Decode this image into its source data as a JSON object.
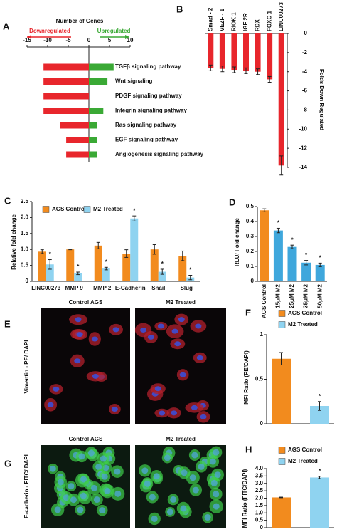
{
  "chart_data": [
    {
      "type": "bar",
      "panel": "A",
      "orientation": "horizontal",
      "xlabel": "Number of Genes",
      "categories": [
        "TGFβ signaling pathway",
        "Wnt  signaling",
        "PDGF signaling pathway",
        "Integrin signaling pathway",
        "Ras  signaling pathway",
        "EGF signaling pathway",
        "Angiogenesis signaling pathway"
      ],
      "series": [
        {
          "name": "Downregulated",
          "color": "#e8262c",
          "values": [
            -11,
            -11,
            -11,
            -11,
            -7,
            -5.5,
            -5.5
          ]
        },
        {
          "name": "Upregulated",
          "color": "#3aa935",
          "values": [
            6,
            4.5,
            0,
            3.5,
            2,
            2,
            2
          ]
        }
      ],
      "xlim": [
        -15,
        10
      ],
      "xticks": [
        -15,
        -10,
        -5,
        0,
        5,
        10
      ]
    },
    {
      "type": "bar",
      "panel": "B",
      "ylabel": "Folds Down Regulated",
      "categories": [
        "Smad - 2",
        "VEZF - 1",
        "RIOK 1",
        "IGF 2R",
        "RDX",
        "FOXC 1",
        "LINC00273"
      ],
      "values": [
        -3.6,
        -3.7,
        -3.8,
        -3.9,
        -4.0,
        -4.8,
        -13.8
      ],
      "errors": [
        0.3,
        0.3,
        0.3,
        0.3,
        0.3,
        0.3,
        1.0
      ],
      "color": "#e8262c",
      "ylim": [
        -14,
        0
      ],
      "yticks": [
        0,
        -2,
        -4,
        -6,
        -8,
        -10,
        -12,
        -14
      ]
    },
    {
      "type": "bar",
      "panel": "C",
      "ylabel": "Relative fold change",
      "categories": [
        "LINC00273",
        "MMP 9",
        "MMP 2",
        "E-Cadherin",
        "Snail",
        "Slug"
      ],
      "series": [
        {
          "name": "AGS Control",
          "color": "#f28b1e",
          "values": [
            0.93,
            1.0,
            1.12,
            0.87,
            1.0,
            0.8
          ],
          "errors": [
            0.06,
            0.01,
            0.1,
            0.12,
            0.15,
            0.15
          ]
        },
        {
          "name": "M2 Treated",
          "color": "#8fd3f0",
          "values": [
            0.53,
            0.25,
            0.4,
            1.97,
            0.3,
            0.12
          ],
          "errors": [
            0.15,
            0.04,
            0.04,
            0.08,
            0.08,
            0.07
          ],
          "annotations": [
            "*",
            "*",
            "*",
            "*",
            "*",
            "*"
          ]
        }
      ],
      "ylim": [
        0,
        2.5
      ],
      "yticks": [
        0,
        0.5,
        {
          "value": 1,
          "label": "1.0"
        },
        1.5,
        {
          "value": 2,
          "label": "2.0"
        },
        2.5
      ]
    },
    {
      "type": "bar",
      "panel": "D",
      "ylabel": "RLU/ Fold change",
      "categories": [
        "AGS Control",
        "15μM M2",
        "25μM M2",
        "35μM M2",
        "50μM M2"
      ],
      "values": [
        0.475,
        0.34,
        0.23,
        0.125,
        0.11
      ],
      "errors": [
        0.01,
        0.015,
        0.012,
        0.015,
        0.012
      ],
      "colors": [
        "#f28b1e",
        "#3fa7dc",
        "#3fa7dc",
        "#3fa7dc",
        "#3fa7dc"
      ],
      "annotations": [
        null,
        "*",
        "*",
        "*",
        "*"
      ],
      "ylim": [
        0,
        0.5
      ],
      "yticks": [
        0,
        0.1,
        0.2,
        0.3,
        0.4,
        0.5
      ]
    },
    {
      "type": "bar",
      "panel": "F",
      "ylabel": "MFI Ratio (PE/DAPI)",
      "categories": [
        null
      ],
      "series": [
        {
          "name": "AGS Control",
          "color": "#f28b1e",
          "values": [
            0.73
          ],
          "errors": [
            0.07
          ]
        },
        {
          "name": "M2 Treated",
          "color": "#8fd3f0",
          "values": [
            0.2
          ],
          "errors": [
            0.05
          ],
          "annotations": [
            "*"
          ]
        }
      ],
      "ylim": [
        0,
        1
      ],
      "yticks": [
        0,
        0.5,
        1
      ]
    },
    {
      "type": "bar",
      "panel": "H",
      "ylabel": "MFI Ratio (FITC/DAPI)",
      "categories": [
        null
      ],
      "series": [
        {
          "name": "AGS Control",
          "color": "#f28b1e",
          "values": [
            2.05
          ],
          "errors": [
            0.02
          ]
        },
        {
          "name": "M2 Treated",
          "color": "#8fd3f0",
          "values": [
            3.4
          ],
          "errors": [
            0.08
          ],
          "annotations": [
            "*"
          ]
        }
      ],
      "ylim": [
        0,
        4
      ],
      "yticks": [
        0,
        0.5,
        {
          "value": 1,
          "label": "1.0"
        },
        1.5,
        {
          "value": 2,
          "label": "2.0"
        },
        2.5,
        {
          "value": 3,
          "label": "3.0"
        },
        3.5,
        {
          "value": 4,
          "label": "4.0"
        }
      ]
    }
  ],
  "images": [
    {
      "panel": "E",
      "ylabel": "Vimentin - PE/ DAPI",
      "titles": [
        "Control  AGS",
        "M2 Treated"
      ]
    },
    {
      "panel": "G",
      "ylabel": "E-cadherin - FITC/ DAPI",
      "titles": [
        "Control  AGS",
        "M2 Treated"
      ]
    }
  ]
}
